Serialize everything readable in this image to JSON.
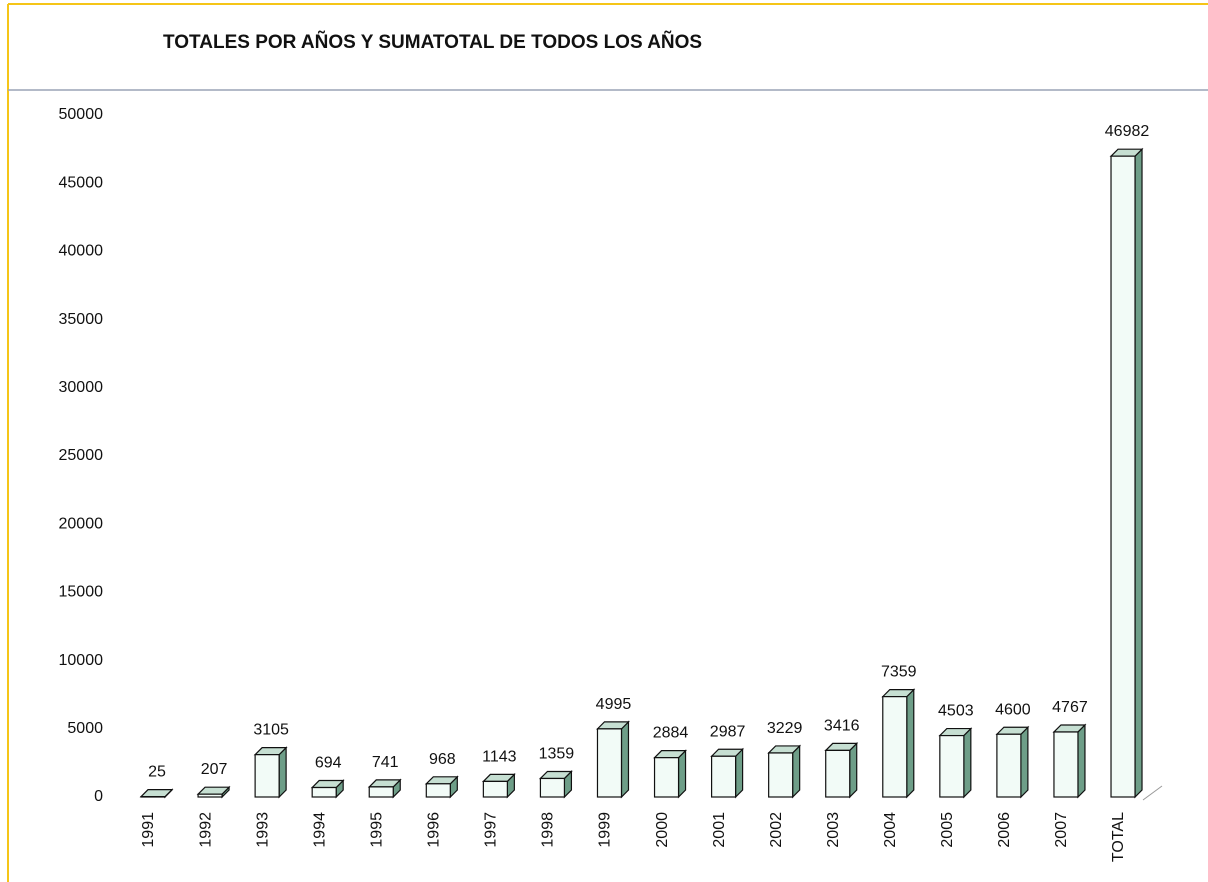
{
  "chart_data": {
    "type": "bar3d",
    "title": "TOTALES POR AÑOS Y  SUMATOTAL DE TODOS LOS AÑOS",
    "categories": [
      "1991",
      "1992",
      "1993",
      "1994",
      "1995",
      "1996",
      "1997",
      "1998",
      "1999",
      "2000",
      "2001",
      "2002",
      "2003",
      "2004",
      "2005",
      "2006",
      "2007",
      "TOTAL"
    ],
    "values": [
      25,
      207,
      3105,
      694,
      741,
      968,
      1143,
      1359,
      4995,
      2884,
      2987,
      3229,
      3416,
      7359,
      4503,
      4600,
      4767,
      46982
    ],
    "color": "#f2fbf7",
    "side_color": "#6e9e88",
    "top_color": "#c6dfd2",
    "ylim": [
      0,
      50000
    ],
    "yticks": [
      0,
      5000,
      10000,
      15000,
      20000,
      25000,
      30000,
      35000,
      40000,
      45000,
      50000
    ],
    "grid": false
  }
}
